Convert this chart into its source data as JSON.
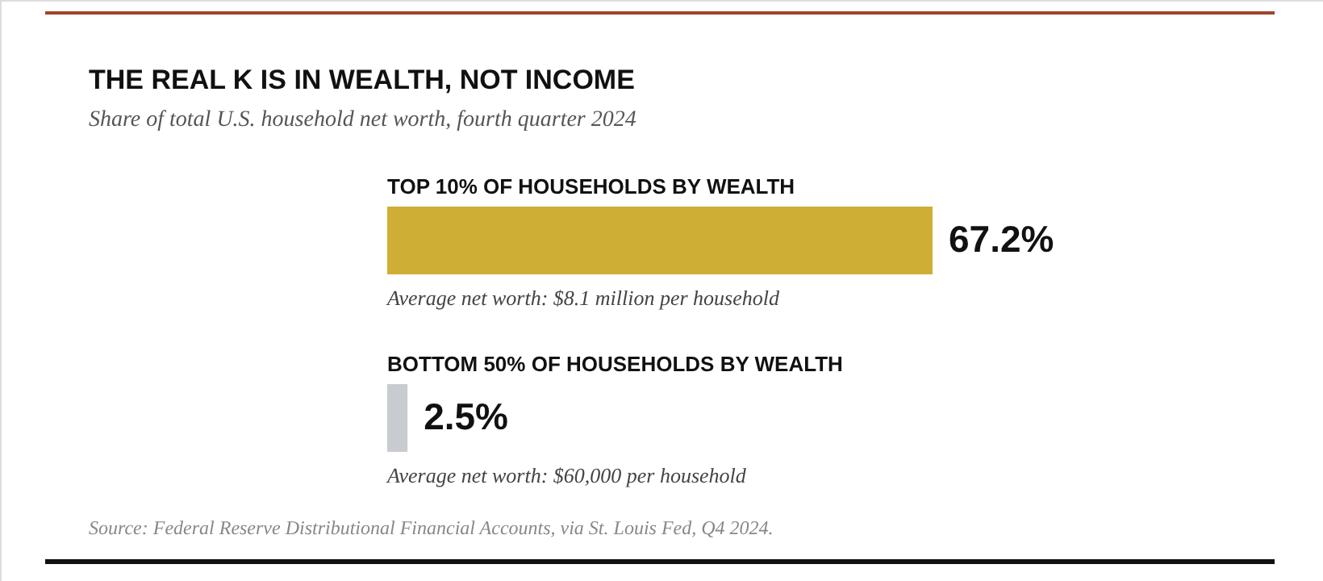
{
  "chart_data": {
    "type": "bar",
    "orientation": "horizontal",
    "title": "THE REAL K IS IN WEALTH, NOT INCOME",
    "subtitle": "Share of total U.S. household net worth, fourth quarter 2024",
    "categories": [
      "TOP 10% OF HOUSEHOLDS BY WEALTH",
      "BOTTOM 50% OF HOUSEHOLDS BY WEALTH"
    ],
    "values": [
      67.2,
      2.5
    ],
    "colors": [
      "#cfae35",
      "#c8ccd1"
    ],
    "value_labels": [
      "67.2%",
      "2.5%"
    ],
    "annotations": [
      "Average net worth: $8.1 million per household",
      "Average net worth: $60,000 per household",
      "Source: Federal Reserve Distributional Financial Accounts, via St. Louis Fed, Q4 2024."
    ]
  }
}
